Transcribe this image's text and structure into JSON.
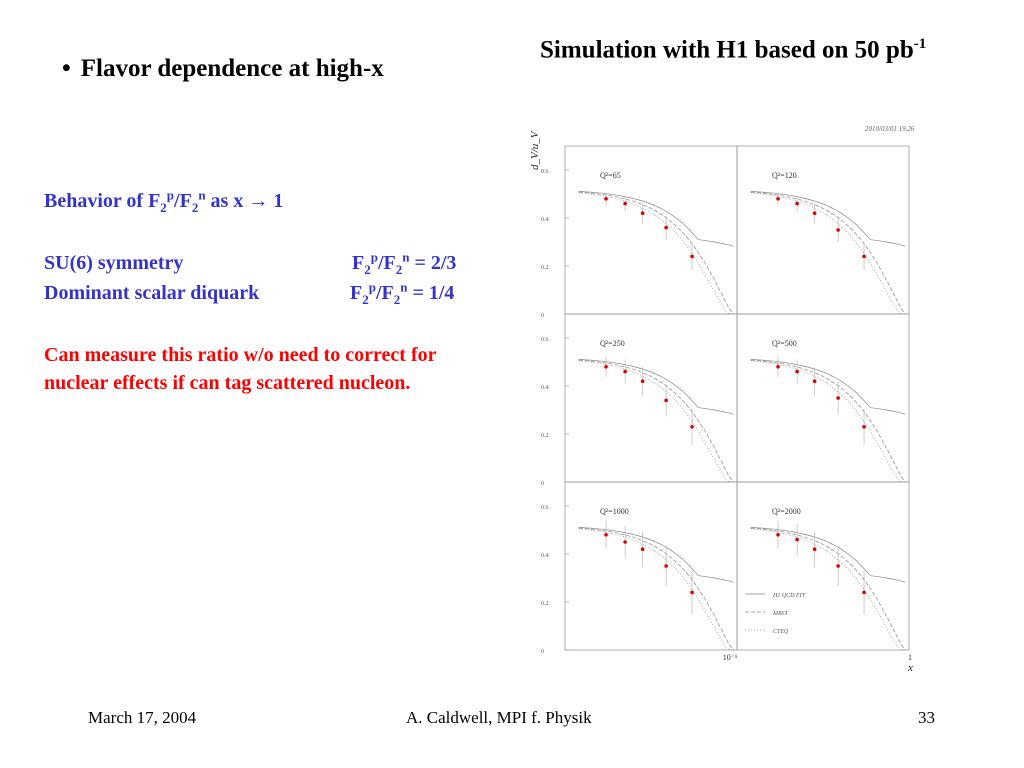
{
  "bullet": {
    "symbol": "•",
    "text": "Flavor dependence at high-x"
  },
  "sim_title": {
    "line": "Simulation with H1 based on 50 pb",
    "exponent": "-1"
  },
  "behavior": {
    "prefix": "Behavior of F",
    "sub1": "2",
    "sup1": "p",
    "slash": "/F",
    "sub2": "2",
    "sup2": "n",
    "suffix": " as x → 1"
  },
  "su6": {
    "label": "SU(6) symmetry",
    "ratio_F": "F",
    "sub1": "2",
    "sup1": "p",
    "slash": "/F",
    "sub2": "2",
    "sup2": "n",
    "value": " = 2/3"
  },
  "diquark": {
    "label": "Dominant scalar diquark",
    "ratio_F": "F",
    "sub1": "2",
    "sup1": "p",
    "slash": "/F",
    "sub2": "2",
    "sup2": "n",
    "value": " = 1/4"
  },
  "red_paragraph": "Can measure this ratio w/o need to correct for nuclear effects if can tag scattered nucleon.",
  "footer": {
    "date": "March 17, 2004",
    "author": "A. Caldwell, MPI f. Physik",
    "page": "33"
  },
  "colors": {
    "blue": "#3333cc",
    "red": "#ff0000",
    "point": "#dd0000"
  },
  "chart_data": {
    "type": "scatter",
    "title": "",
    "ylabel": "d_V/u_V",
    "xlabel": "x",
    "corner_text": "2010/03/01  19.26",
    "x_log": true,
    "x_tick_labels": [
      "10⁻¹",
      "1"
    ],
    "y_ticks": [
      "0",
      "0.2",
      "0.4",
      "0.6"
    ],
    "ylim": [
      0,
      0.7
    ],
    "legend": [
      "H1 QCD FIT",
      "MRST",
      "CTEQ"
    ],
    "legend_position": "bottom-right of last panel",
    "panels": [
      {
        "label": "Q²=65",
        "x": [
          0.03,
          0.05,
          0.08,
          0.15,
          0.3
        ],
        "y": [
          0.48,
          0.46,
          0.42,
          0.36,
          0.24
        ]
      },
      {
        "label": "Q²=120",
        "x": [
          0.03,
          0.05,
          0.08,
          0.15,
          0.3
        ],
        "y": [
          0.48,
          0.46,
          0.42,
          0.35,
          0.24
        ]
      },
      {
        "label": "Q²=250",
        "x": [
          0.03,
          0.05,
          0.08,
          0.15,
          0.3
        ],
        "y": [
          0.48,
          0.46,
          0.42,
          0.34,
          0.23
        ]
      },
      {
        "label": "Q²=500",
        "x": [
          0.03,
          0.05,
          0.08,
          0.15,
          0.3
        ],
        "y": [
          0.48,
          0.46,
          0.42,
          0.35,
          0.23
        ]
      },
      {
        "label": "Q²=1000",
        "x": [
          0.03,
          0.05,
          0.08,
          0.15,
          0.3
        ],
        "y": [
          0.48,
          0.45,
          0.42,
          0.35,
          0.24
        ]
      },
      {
        "label": "Q²=2000",
        "x": [
          0.03,
          0.05,
          0.08,
          0.15,
          0.3
        ],
        "y": [
          0.48,
          0.46,
          0.42,
          0.35,
          0.24
        ]
      }
    ]
  }
}
